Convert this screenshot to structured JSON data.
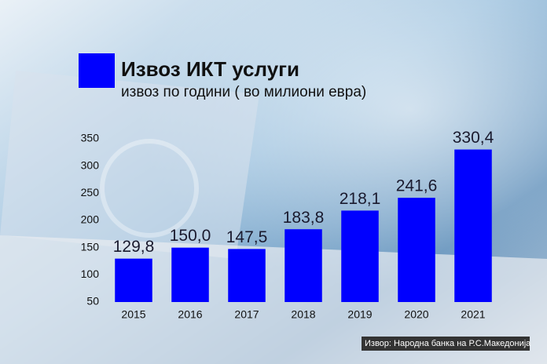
{
  "chart_data": {
    "type": "bar",
    "title": "Извоз ИКТ услуги",
    "subtitle": "извоз по години ( во милиони евра)",
    "source": "Извор: Народна банка на Р.С.Македонија",
    "categories": [
      "2015",
      "2016",
      "2017",
      "2018",
      "2019",
      "2020",
      "2021"
    ],
    "values": [
      129.8,
      150.0,
      147.5,
      183.8,
      218.1,
      241.6,
      330.4
    ],
    "value_labels": [
      "129,8",
      "150,0",
      "147,5",
      "183,8",
      "218,1",
      "241,6",
      "330,4"
    ],
    "color": "#0000ff",
    "ylim": [
      50,
      350
    ],
    "yticks": [
      50,
      100,
      150,
      200,
      250,
      300,
      350
    ],
    "grid": false
  }
}
